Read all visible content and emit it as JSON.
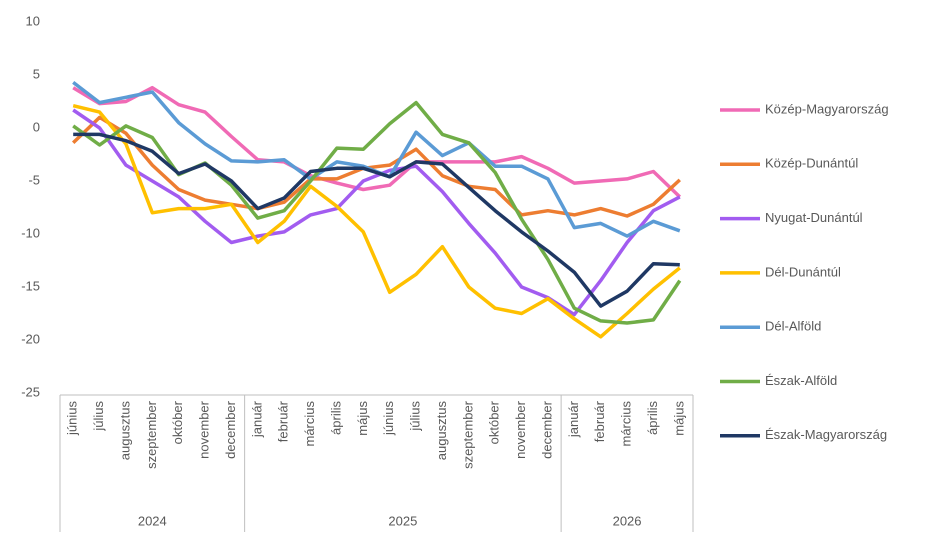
{
  "chart_data": {
    "type": "line",
    "category_groups": [
      {
        "label": "2024",
        "categories": [
          "június",
          "július",
          "augusztus",
          "szeptember",
          "október",
          "november",
          "december"
        ]
      },
      {
        "label": "2025",
        "categories": [
          "január",
          "február",
          "március",
          "április",
          "május",
          "június",
          "július",
          "augusztus",
          "szeptember",
          "október",
          "november",
          "december"
        ]
      },
      {
        "label": "2026",
        "categories": [
          "január",
          "február",
          "március",
          "április",
          "május"
        ]
      }
    ],
    "ylim": [
      -25,
      10
    ],
    "yticks": [
      -25,
      -20,
      -15,
      -10,
      -5,
      0,
      5,
      10
    ],
    "grid": false,
    "legend": "right",
    "series": [
      {
        "name": "Közép-Magyarország",
        "color": "#f06ab5",
        "values": [
          3.8,
          2.3,
          2.5,
          3.8,
          2.2,
          1.5,
          -0.8,
          -3,
          -3.2,
          -4.5,
          -5.2,
          -5.8,
          -5.4,
          -3.2,
          -3.2,
          -3.2,
          -3.2,
          -2.7,
          -3.8,
          -5.2,
          -5,
          -4.8,
          -4.1,
          -6.5
        ]
      },
      {
        "name": "Közép-Dunántúl",
        "color": "#ed7d31",
        "values": [
          -1.4,
          1,
          -0.5,
          -3.5,
          -5.8,
          -6.8,
          -7.2,
          -7.6,
          -7,
          -4.8,
          -4.8,
          -3.8,
          -3.5,
          -2,
          -4.5,
          -5.5,
          -5.8,
          -8.2,
          -7.8,
          -8.2,
          -7.6,
          -8.3,
          -7.2,
          -4.9
        ]
      },
      {
        "name": "Nyugat-Dunántúl",
        "color": "#a25cf0",
        "values": [
          1.7,
          0,
          -3.5,
          -5,
          -6.5,
          -8.8,
          -10.8,
          -10.2,
          -9.8,
          -8.2,
          -7.6,
          -5,
          -4,
          -3.6,
          -6,
          -9,
          -11.8,
          -15,
          -16,
          -17.6,
          -14.4,
          -10.8,
          -7.8,
          -6.5
        ]
      },
      {
        "name": "Dél-Dunántúl",
        "color": "#ffc000",
        "values": [
          2.1,
          1.5,
          -1.5,
          -8,
          -7.6,
          -7.6,
          -7.2,
          -10.8,
          -8.8,
          -5.5,
          -7.4,
          -9.8,
          -15.5,
          -13.8,
          -11.2,
          -15,
          -17,
          -17.5,
          -16.1,
          -18,
          -19.7,
          -17.5,
          -15.2,
          -13.2
        ]
      },
      {
        "name": "Dél-Alföld",
        "color": "#5b9bd5",
        "values": [
          4.3,
          2.4,
          2.9,
          3.4,
          0.5,
          -1.5,
          -3.1,
          -3.2,
          -3,
          -4.8,
          -3.2,
          -3.6,
          -4.6,
          -0.4,
          -2.6,
          -1.4,
          -3.6,
          -3.6,
          -4.8,
          -9.4,
          -9,
          -10.2,
          -8.8,
          -9.7
        ]
      },
      {
        "name": "Észak-Alföld",
        "color": "#70ad47",
        "values": [
          0.2,
          -1.6,
          0.2,
          -0.9,
          -4.4,
          -3.3,
          -5.4,
          -8.5,
          -7.8,
          -5,
          -1.9,
          -2,
          0.4,
          2.4,
          -0.6,
          -1.4,
          -4.2,
          -8.6,
          -12.4,
          -17,
          -18.2,
          -18.4,
          -18.1,
          -14.4
        ]
      },
      {
        "name": "Észak-Magyarország",
        "color": "#1f3864",
        "values": [
          -0.6,
          -0.6,
          -1.2,
          -2.2,
          -4.3,
          -3.4,
          -5,
          -7.6,
          -6.6,
          -4.1,
          -3.8,
          -3.8,
          -4.6,
          -3.2,
          -3.4,
          -5.6,
          -7.8,
          -9.8,
          -11.6,
          -13.6,
          -16.8,
          -15.4,
          -12.8,
          -12.9
        ]
      }
    ]
  }
}
